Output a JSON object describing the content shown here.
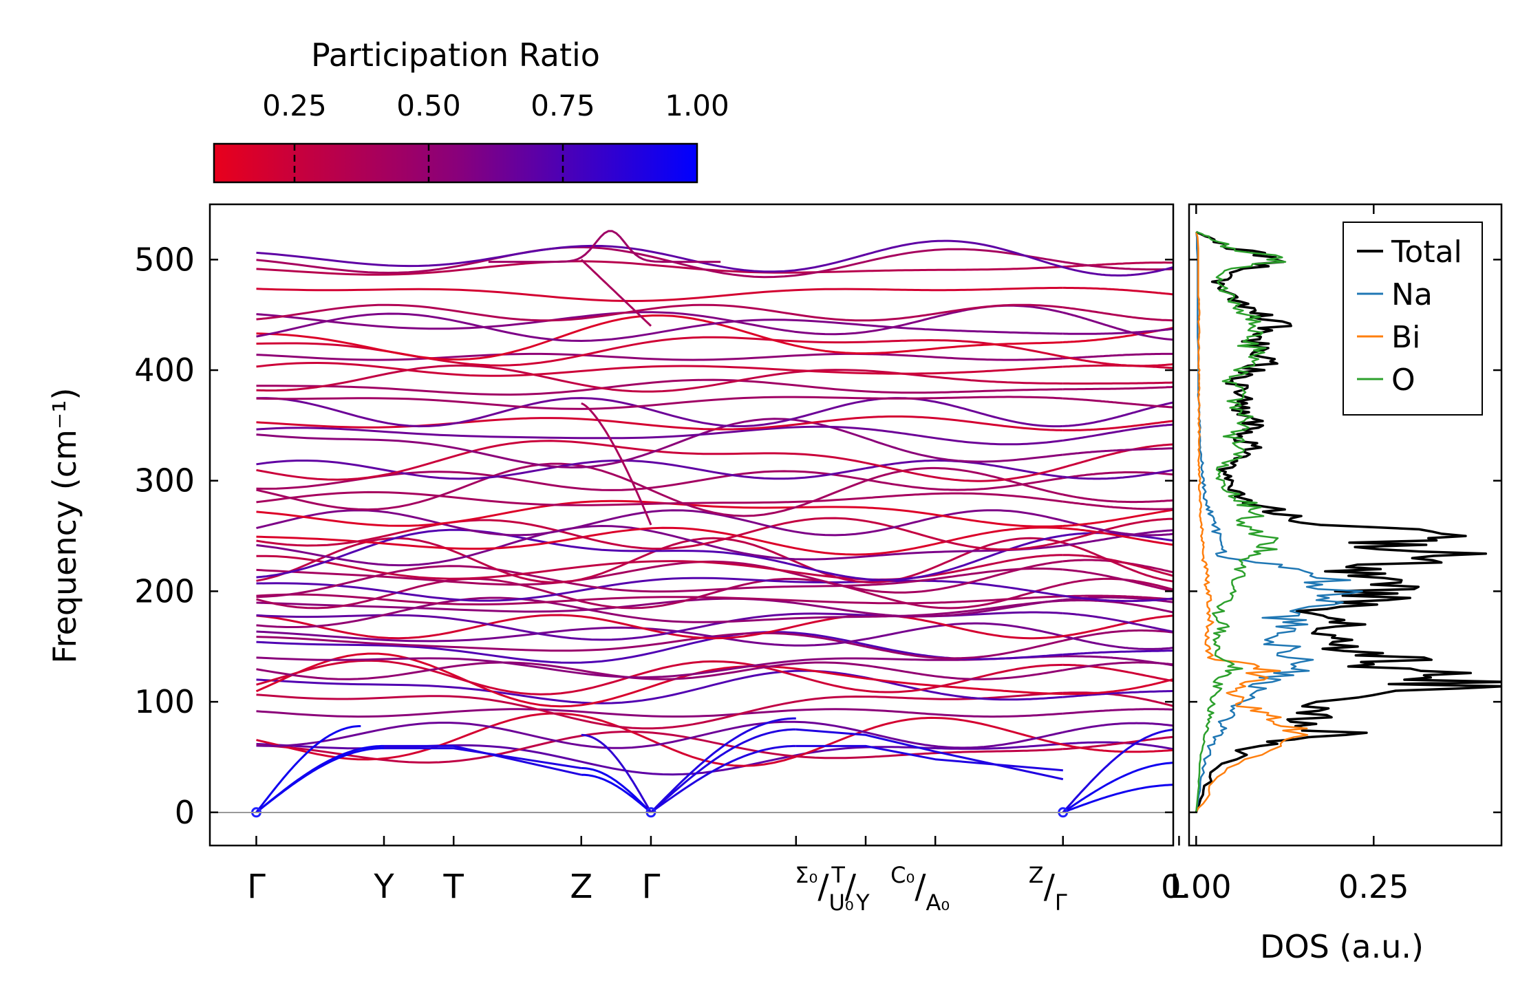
{
  "colorbar": {
    "title": "Participation Ratio",
    "ticks": [
      0.25,
      0.5,
      0.75,
      1.0
    ],
    "tick_labels": [
      "0.25",
      "0.50",
      "0.75",
      "1.00"
    ],
    "range": [
      0.1,
      1.0
    ],
    "color_low": "#e8001c",
    "color_mid": "#8a007a",
    "color_high": "#0000ff"
  },
  "chart_data": [
    {
      "type": "line",
      "name": "phonon-band-structure",
      "ylabel": "Frequency (cm⁻¹)",
      "ylim": [
        -30,
        550
      ],
      "yticks": [
        0,
        100,
        200,
        300,
        400,
        500
      ],
      "ytick_labels": [
        "0",
        "100",
        "200",
        "300",
        "400",
        "500"
      ],
      "xlim": [
        -0.4,
        7.9
      ],
      "kpoints": [
        {
          "label": "Γ",
          "x": 0.0
        },
        {
          "label": "Y",
          "x": 1.1
        },
        {
          "label": "T",
          "x": 1.7
        },
        {
          "label": "Z",
          "x": 2.8
        },
        {
          "label": "Γ",
          "x": 3.4
        },
        {
          "x": 4.65
        },
        {
          "label_sup": "Σ₀",
          "label_sub": "U₀",
          "x": 5.25
        },
        {
          "label_sup": "T",
          "label_sub": "Y",
          "x": 5.25
        },
        {
          "x": 5.85
        },
        {
          "label_sup": "C₀",
          "label_sub": "A₀",
          "x": 5.85
        },
        {
          "label_sup": "Z",
          "label_sub": "Γ",
          "x": 6.95
        },
        {
          "label": "L",
          "x": 7.95
        }
      ],
      "segments": [
        [
          0.0,
          5.25
        ],
        [
          5.25,
          6.95
        ],
        [
          6.95,
          7.95
        ]
      ],
      "zero_line": 0,
      "band_count": 60,
      "highlighted_bands": {
        "acoustic_gamma_to_y": [
          0,
          58,
          60
        ],
        "top_bump_z_gamma": 525,
        "max_frequency": 525
      }
    },
    {
      "type": "line",
      "name": "density-of-states",
      "xlabel": "DOS (a.u.)",
      "xlim": [
        -0.01,
        0.43
      ],
      "xticks": [
        0.0,
        0.25
      ],
      "xtick_labels": [
        "0.00",
        "0.25"
      ],
      "ylim": [
        -30,
        550
      ],
      "legend_position": "top-right",
      "series": [
        {
          "name": "Total",
          "color": "#000000",
          "y": [
            0,
            20,
            40,
            60,
            70,
            80,
            90,
            100,
            110,
            120,
            130,
            140,
            150,
            160,
            170,
            180,
            190,
            200,
            210,
            220,
            230,
            240,
            250,
            260,
            270,
            280,
            290,
            300,
            310,
            320,
            330,
            340,
            350,
            360,
            370,
            380,
            390,
            400,
            410,
            420,
            430,
            440,
            450,
            460,
            470,
            480,
            490,
            500,
            510,
            520,
            525
          ],
          "values": [
            0.0,
            0.01,
            0.03,
            0.08,
            0.2,
            0.17,
            0.15,
            0.16,
            0.33,
            0.38,
            0.28,
            0.3,
            0.2,
            0.17,
            0.2,
            0.15,
            0.24,
            0.26,
            0.25,
            0.23,
            0.38,
            0.25,
            0.34,
            0.2,
            0.13,
            0.08,
            0.06,
            0.05,
            0.04,
            0.07,
            0.09,
            0.06,
            0.08,
            0.07,
            0.06,
            0.07,
            0.05,
            0.08,
            0.1,
            0.09,
            0.08,
            0.11,
            0.09,
            0.07,
            0.04,
            0.03,
            0.06,
            0.12,
            0.05,
            0.02,
            0.0
          ]
        },
        {
          "name": "Na",
          "color": "#1f77b4",
          "y": [
            0,
            20,
            40,
            60,
            70,
            80,
            90,
            100,
            110,
            120,
            130,
            140,
            150,
            160,
            170,
            180,
            190,
            200,
            210,
            220,
            230,
            240,
            250,
            260,
            270,
            280,
            290,
            300,
            310,
            320,
            330,
            340,
            350,
            360,
            370,
            380,
            390,
            400,
            410,
            420,
            430,
            440,
            450,
            460,
            470,
            480,
            490,
            500,
            510,
            520,
            525
          ],
          "values": [
            0.0,
            0.005,
            0.01,
            0.02,
            0.03,
            0.04,
            0.05,
            0.06,
            0.08,
            0.1,
            0.16,
            0.13,
            0.12,
            0.11,
            0.13,
            0.12,
            0.17,
            0.19,
            0.18,
            0.16,
            0.04,
            0.03,
            0.03,
            0.025,
            0.02,
            0.015,
            0.012,
            0.01,
            0.008,
            0.008,
            0.006,
            0.005,
            0.005,
            0.004,
            0.004,
            0.003,
            0.003,
            0.003,
            0.003,
            0.003,
            0.002,
            0.002,
            0.002,
            0.002,
            0.002,
            0.002,
            0.002,
            0.002,
            0.001,
            0.001,
            0.0
          ]
        },
        {
          "name": "Bi",
          "color": "#ff7f0e",
          "y": [
            0,
            20,
            40,
            60,
            70,
            80,
            90,
            100,
            110,
            120,
            130,
            140,
            150,
            160,
            170,
            180,
            190,
            200,
            210,
            220,
            230,
            240,
            250,
            260,
            270,
            280,
            290,
            300,
            310,
            320,
            330,
            340,
            350,
            360,
            370,
            380,
            390,
            400,
            410,
            420,
            430,
            440,
            450,
            460,
            470,
            480,
            490,
            500,
            510,
            520,
            525
          ],
          "values": [
            0.0,
            0.02,
            0.04,
            0.12,
            0.14,
            0.12,
            0.09,
            0.06,
            0.05,
            0.08,
            0.1,
            0.02,
            0.015,
            0.015,
            0.02,
            0.02,
            0.02,
            0.015,
            0.015,
            0.015,
            0.01,
            0.01,
            0.008,
            0.008,
            0.006,
            0.006,
            0.005,
            0.005,
            0.004,
            0.004,
            0.004,
            0.004,
            0.004,
            0.004,
            0.004,
            0.004,
            0.004,
            0.004,
            0.004,
            0.004,
            0.004,
            0.004,
            0.004,
            0.004,
            0.003,
            0.003,
            0.003,
            0.003,
            0.003,
            0.002,
            0.0
          ]
        },
        {
          "name": "O",
          "color": "#2ca02c",
          "y": [
            0,
            20,
            40,
            60,
            70,
            80,
            90,
            100,
            110,
            120,
            130,
            140,
            150,
            160,
            170,
            180,
            190,
            200,
            210,
            220,
            230,
            240,
            250,
            260,
            270,
            280,
            290,
            300,
            310,
            320,
            330,
            340,
            350,
            360,
            370,
            380,
            390,
            400,
            410,
            420,
            430,
            440,
            450,
            460,
            470,
            480,
            490,
            500,
            510,
            520,
            525
          ],
          "values": [
            0.0,
            0.003,
            0.005,
            0.01,
            0.012,
            0.015,
            0.02,
            0.025,
            0.03,
            0.03,
            0.06,
            0.03,
            0.03,
            0.03,
            0.04,
            0.03,
            0.04,
            0.05,
            0.05,
            0.07,
            0.06,
            0.1,
            0.09,
            0.06,
            0.1,
            0.07,
            0.05,
            0.04,
            0.03,
            0.06,
            0.07,
            0.05,
            0.08,
            0.06,
            0.05,
            0.07,
            0.04,
            0.07,
            0.09,
            0.08,
            0.07,
            0.1,
            0.08,
            0.06,
            0.04,
            0.03,
            0.05,
            0.12,
            0.05,
            0.02,
            0.0
          ]
        }
      ]
    }
  ]
}
